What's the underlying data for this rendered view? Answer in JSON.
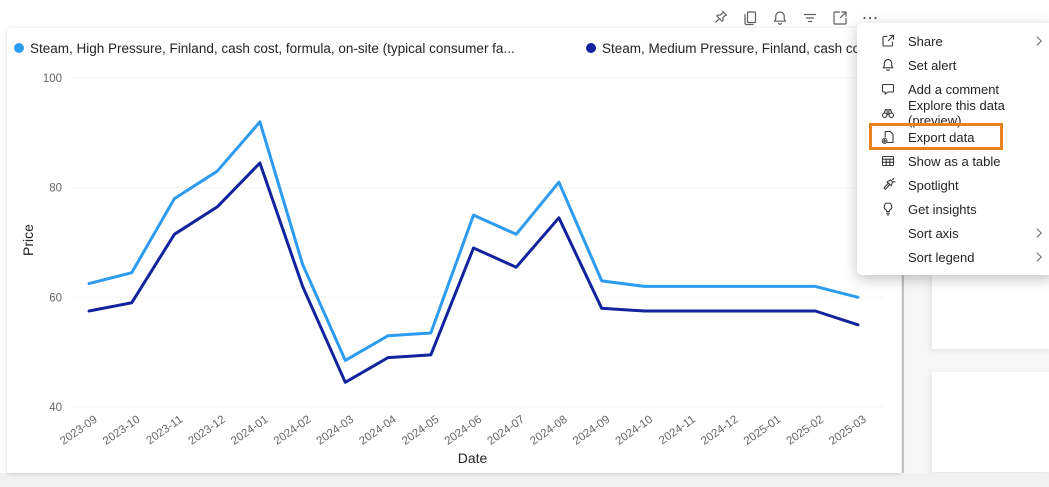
{
  "colors": {
    "series_high": "#2D9BF0",
    "series_medium": "#12239E",
    "highlight_orange": "#E8821E",
    "gridline": "#E0E0E0",
    "axis_text": "#666666",
    "menu_text": "#252423"
  },
  "toolbar": {
    "icons": [
      "pin",
      "copy",
      "set-alert",
      "filter",
      "focus-mode",
      "more-options"
    ]
  },
  "legend": {
    "items": [
      {
        "label": "Steam, High Pressure, Finland, cash cost, formula, on-site (typical consumer fa...",
        "color": "#2D9BF0"
      },
      {
        "label": "Steam, Medium Pressure, Finland, cash co...",
        "color": "#12239E"
      }
    ]
  },
  "menu": {
    "items": [
      {
        "icon": "share-icon",
        "label": "Share",
        "chevron": true
      },
      {
        "icon": "bell-icon",
        "label": "Set alert",
        "chevron": false
      },
      {
        "icon": "comment-icon",
        "label": "Add a comment",
        "chevron": false
      },
      {
        "icon": "binoculars-icon",
        "label": "Explore this data (preview)",
        "chevron": false
      },
      {
        "icon": "export-icon",
        "label": "Export data",
        "chevron": false,
        "highlighted": true
      },
      {
        "icon": "table-icon",
        "label": "Show as a table",
        "chevron": false
      },
      {
        "icon": "spotlight-icon",
        "label": "Spotlight",
        "chevron": false
      },
      {
        "icon": "lightbulb-icon",
        "label": "Get insights",
        "chevron": false
      },
      {
        "icon": null,
        "label": "Sort axis",
        "chevron": true
      },
      {
        "icon": null,
        "label": "Sort legend",
        "chevron": true
      }
    ]
  },
  "chart_data": {
    "type": "line",
    "xlabel": "Date",
    "ylabel": "Price",
    "ylim": [
      40,
      100
    ],
    "yticks": [
      40,
      60,
      80,
      100
    ],
    "grid": true,
    "legend_position": "top",
    "categories": [
      "2023-09",
      "2023-10",
      "2023-11",
      "2023-12",
      "2024-01",
      "2024-02",
      "2024-03",
      "2024-04",
      "2024-05",
      "2024-06",
      "2024-07",
      "2024-08",
      "2024-09",
      "2024-10",
      "2024-11",
      "2024-12",
      "2025-01",
      "2025-02",
      "2025-03"
    ],
    "series": [
      {
        "name": "Steam, High Pressure, Finland, cash cost, formula, on-site (typical consumer fa...",
        "color": "#2D9BF0",
        "values": [
          62.5,
          64.5,
          78,
          83,
          92,
          66,
          48.5,
          53,
          53.5,
          75,
          71.5,
          81,
          63,
          62,
          62,
          62,
          62,
          62,
          60
        ]
      },
      {
        "name": "Steam, Medium Pressure, Finland, cash co...",
        "color": "#12239E",
        "values": [
          57.5,
          59,
          71.5,
          76.5,
          84.5,
          62,
          44.5,
          49,
          49.5,
          69,
          65.5,
          74.5,
          58,
          57.5,
          57.5,
          57.5,
          57.5,
          57.5,
          55
        ]
      }
    ]
  }
}
